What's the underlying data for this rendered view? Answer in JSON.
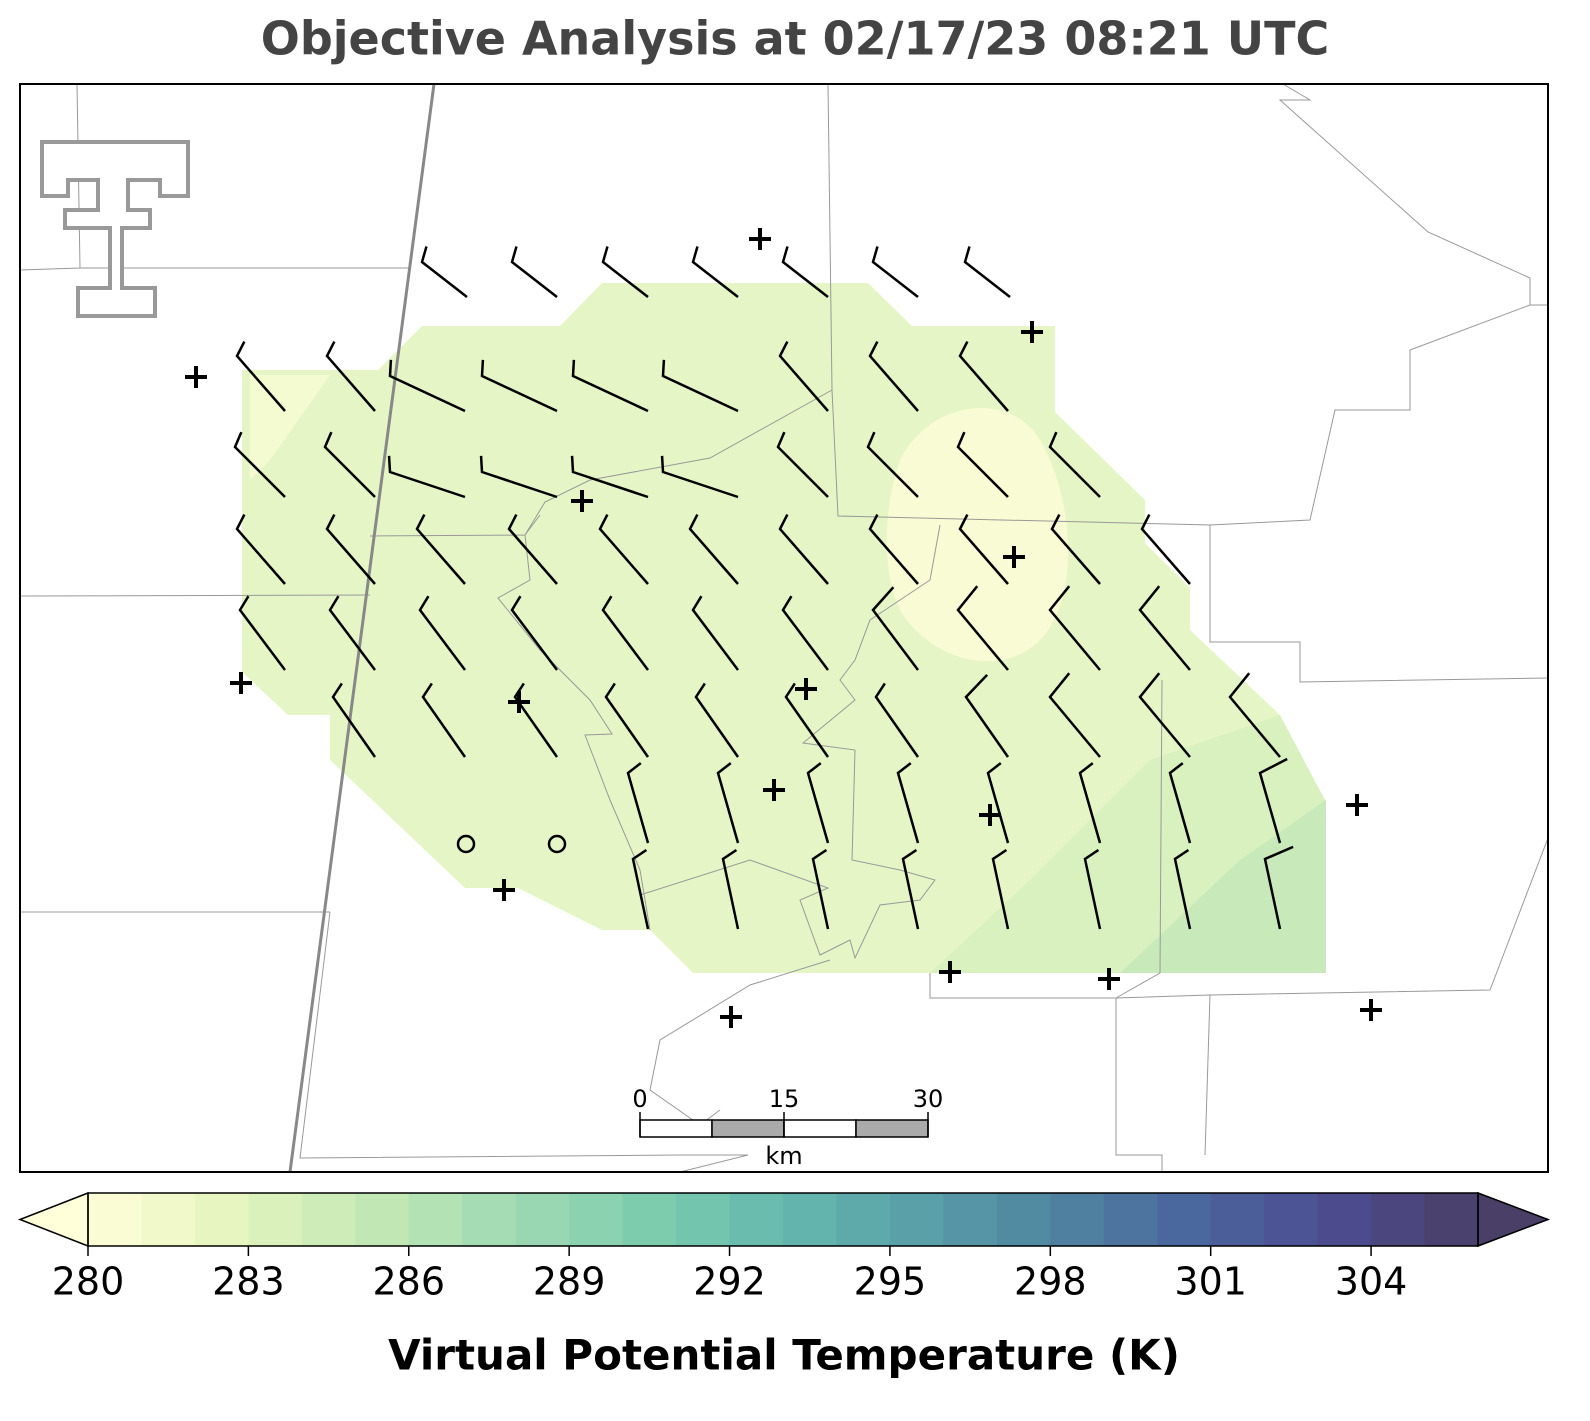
{
  "chart_data": {
    "type": "map",
    "title": "Objective Analysis at 02/17/23 08:21 UTC",
    "colorbar": {
      "label": "Virtual Potential Temperature (K)",
      "lim": [
        280,
        306
      ],
      "ticks": [
        280,
        283,
        286,
        289,
        292,
        295,
        298,
        301,
        304
      ],
      "colors": [
        "#ffffd9",
        "#e6f5c0",
        "#c5e9b4",
        "#a1dab4",
        "#7fcdae",
        "#65b9ae",
        "#589fa8",
        "#4f83a0",
        "#4b659e",
        "#4c4b90",
        "#4a3f66"
      ],
      "extend": "both"
    },
    "scale_bar": {
      "ticks": [
        0,
        15,
        30
      ],
      "unit": "km"
    }
  }
}
